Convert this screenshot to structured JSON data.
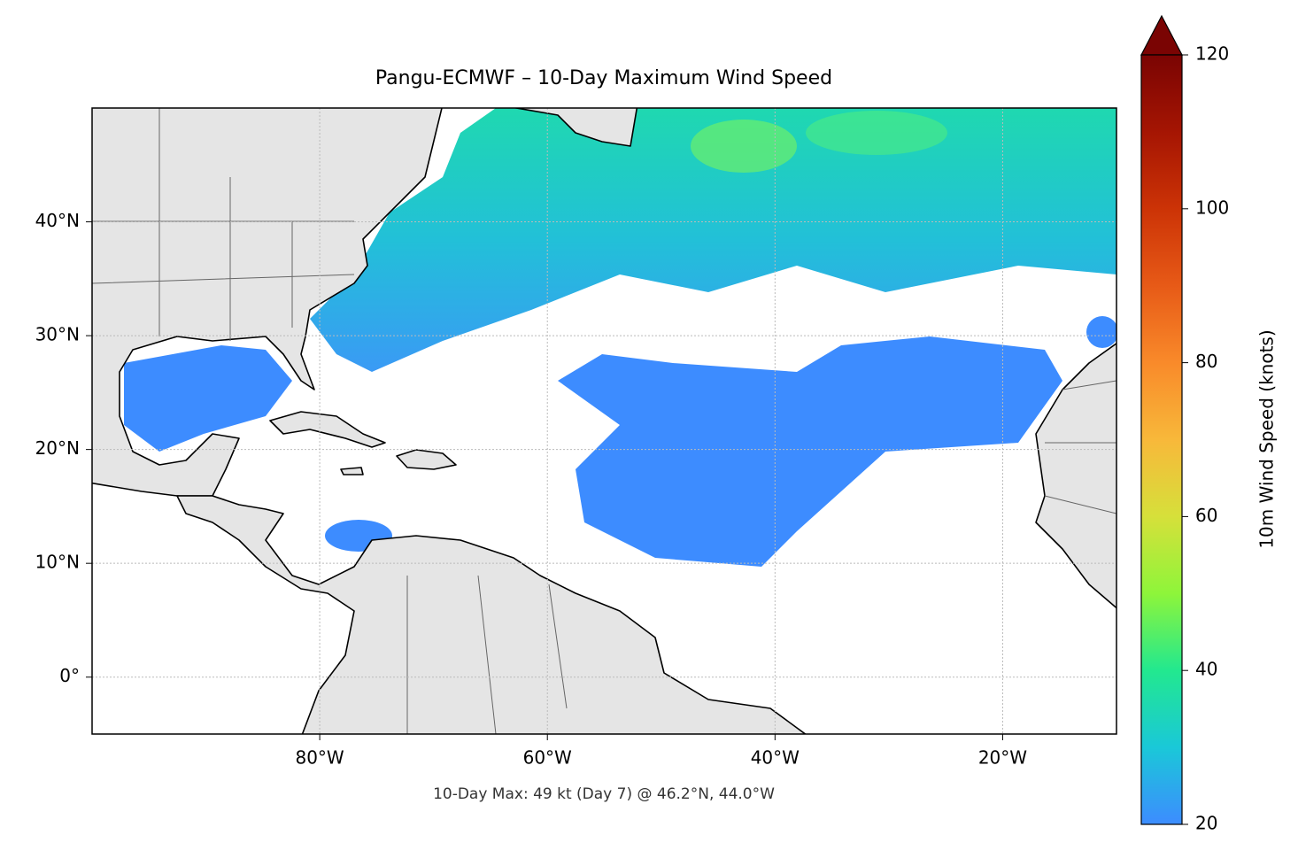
{
  "chart_data": {
    "type": "map",
    "title": "Pangu-ECMWF – 10-Day Maximum Wind Speed",
    "annotation": "10-Day Max: 49 kt (Day 7) @ 46.2°N, 44.0°W",
    "xlim": [
      -100,
      -10
    ],
    "ylim": [
      -5,
      50
    ],
    "xticks": [
      {
        "value": -80,
        "label": "80°W"
      },
      {
        "value": -60,
        "label": "60°W"
      },
      {
        "value": -40,
        "label": "40°W"
      },
      {
        "value": -20,
        "label": "20°W"
      }
    ],
    "yticks": [
      {
        "value": 0,
        "label": "0°"
      },
      {
        "value": 10,
        "label": "10°N"
      },
      {
        "value": 20,
        "label": "20°N"
      },
      {
        "value": 30,
        "label": "30°N"
      },
      {
        "value": 40,
        "label": "40°N"
      }
    ],
    "grid": true,
    "colorbar": {
      "label": "10m Wind Speed (knots)",
      "lim": [
        20,
        120
      ],
      "ticks": [
        20,
        40,
        60,
        80,
        100,
        120
      ]
    }
  }
}
